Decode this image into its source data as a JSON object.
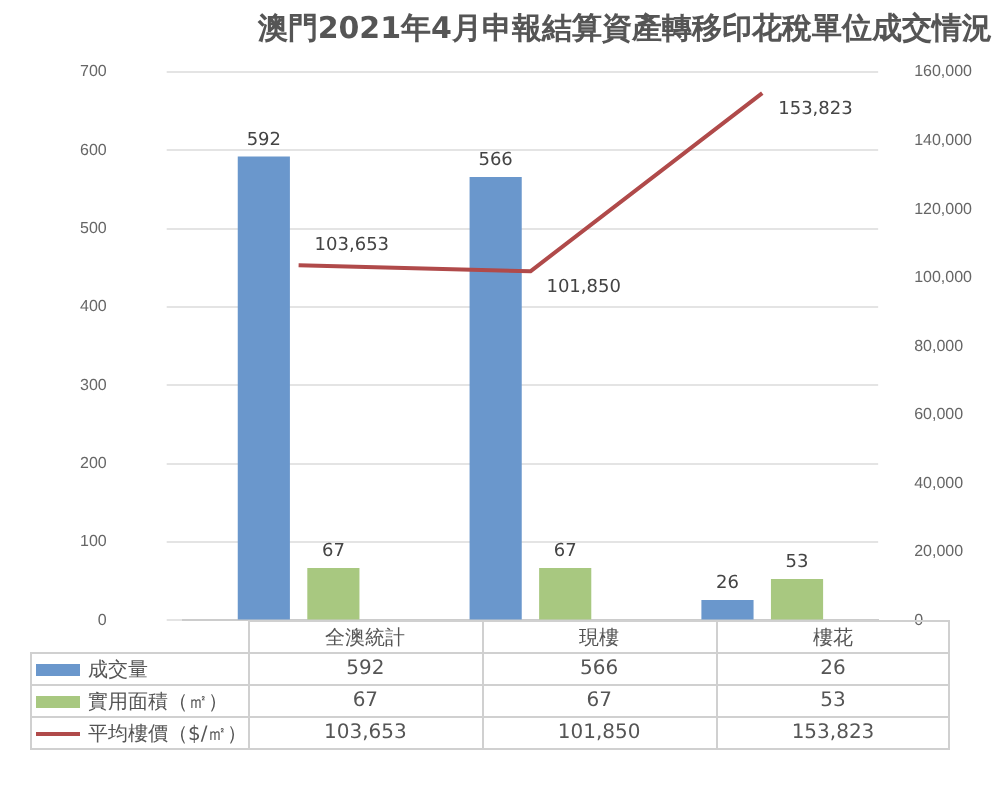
{
  "chart_data": {
    "type": "bar",
    "title": "澳門2021年4月申報結算資產轉移印花稅單位成交情況",
    "categories": [
      "全澳統計",
      "現樓",
      "樓花"
    ],
    "series": [
      {
        "name": "成交量",
        "color": "#6a97cc",
        "values": [
          592,
          566,
          26
        ],
        "value_labels": [
          "592",
          "566",
          "26"
        ]
      },
      {
        "name": "實用面積（㎡）",
        "color": "#a8c880",
        "values": [
          67,
          67,
          53
        ],
        "value_labels": [
          "67",
          "67",
          "53"
        ]
      },
      {
        "name": "平均樓價（$/㎡）",
        "color": "#b04a4a",
        "type": "line",
        "axis": "y2",
        "values": [
          103653,
          101850,
          153823
        ],
        "value_labels": [
          "103,653",
          "101,850",
          "153,823"
        ]
      }
    ],
    "ylim": [
      0,
      700
    ],
    "yticks": [
      0,
      100,
      200,
      300,
      400,
      500,
      600,
      700
    ],
    "y2lim": [
      0,
      160000
    ],
    "y2ticks": [
      0,
      {
        "value": 20000,
        "label": "20,000"
      },
      {
        "value": 40000,
        "label": "40,000"
      },
      {
        "value": 60000,
        "label": "60,000"
      },
      {
        "value": 80000,
        "label": "80,000"
      },
      {
        "value": 100000,
        "label": "100,000"
      },
      {
        "value": 120000,
        "label": "120,000"
      },
      {
        "value": 140000,
        "label": "140,000"
      },
      {
        "value": 160000,
        "label": "160,000"
      }
    ],
    "grid": "y",
    "legend": "bottom",
    "marker": "none"
  }
}
